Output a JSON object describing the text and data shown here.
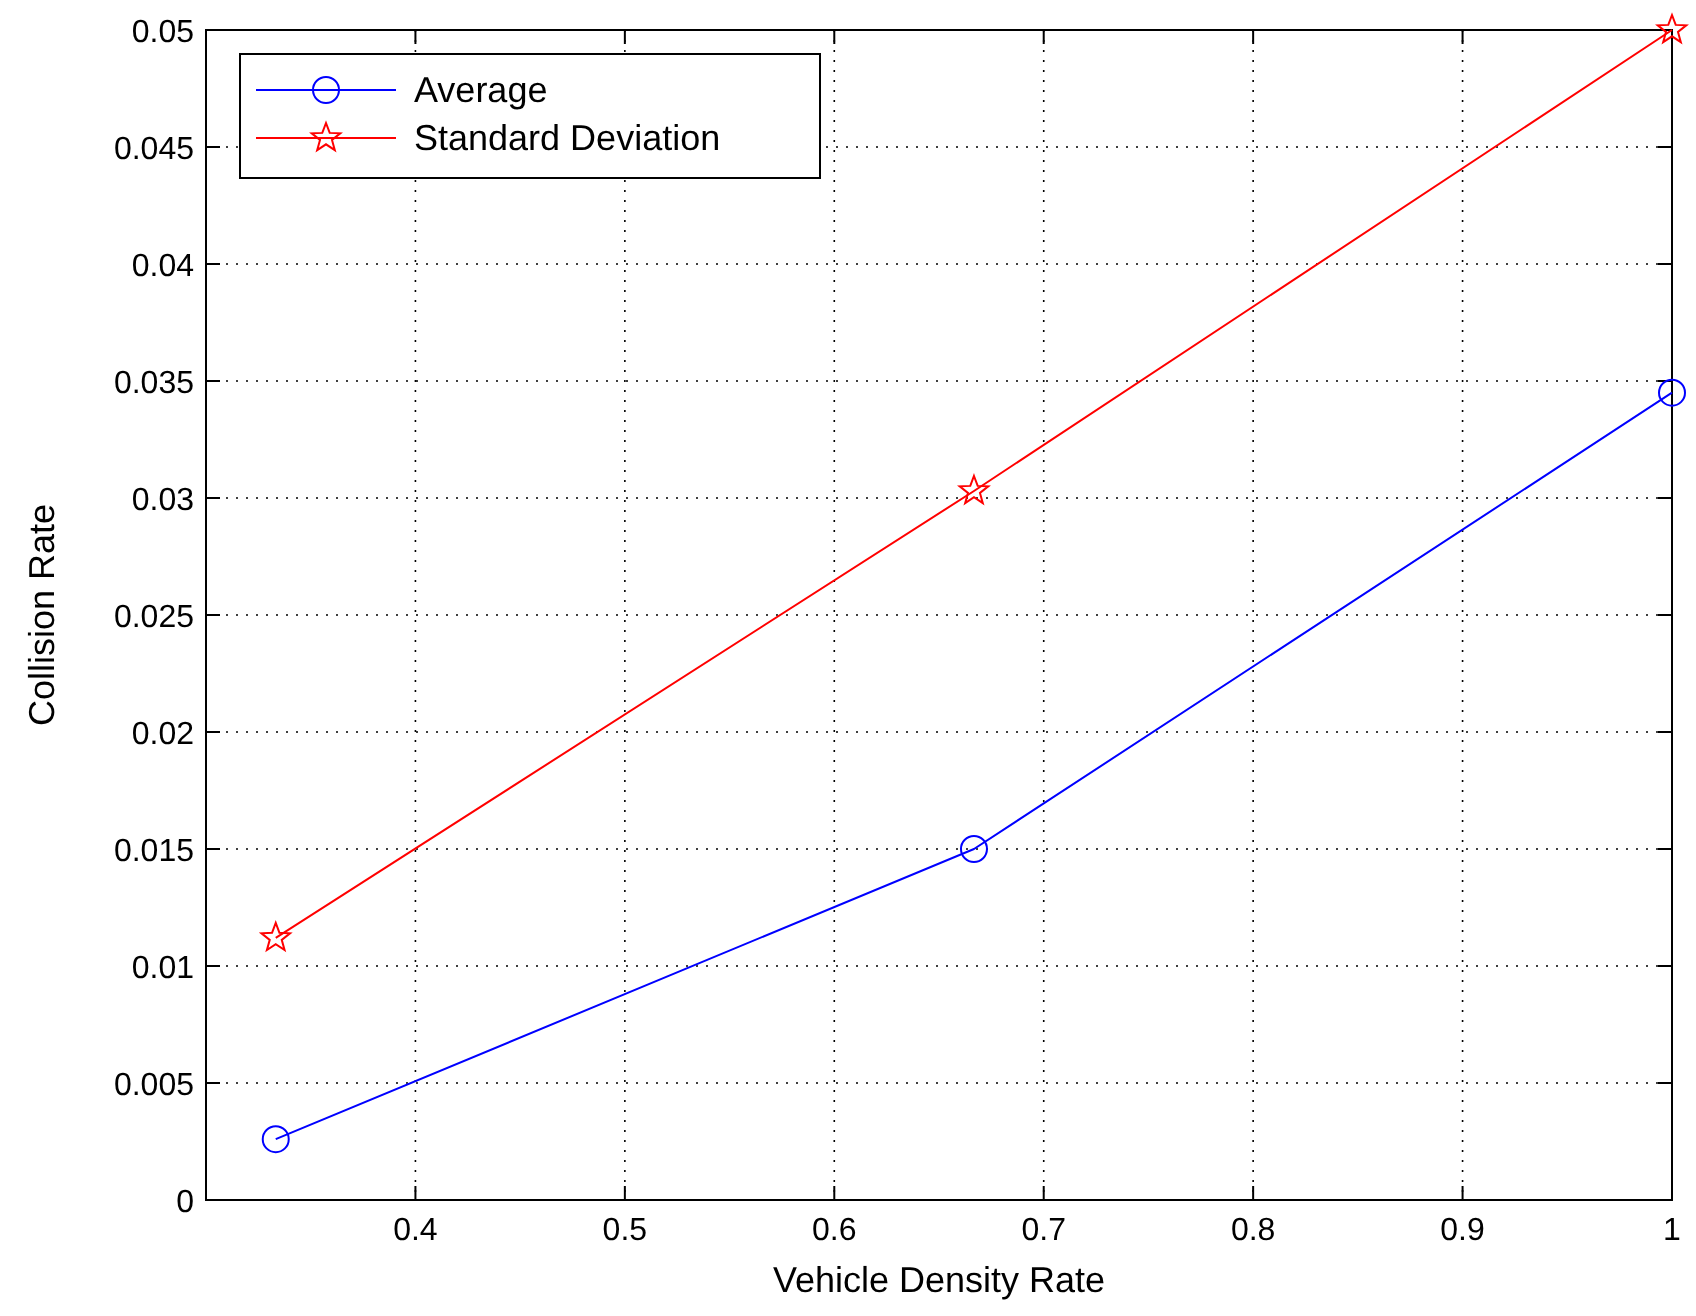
{
  "chart_data": {
    "type": "line",
    "xlabel": "Vehicle Density Rate",
    "ylabel": "Collision Rate",
    "x": [
      0.3333,
      0.6667,
      1
    ],
    "series": [
      {
        "name": "Average",
        "color": "#0000ff",
        "values": [
          0.0026,
          0.015,
          0.0345
        ],
        "marker": "circle"
      },
      {
        "name": "Standard Deviation",
        "color": "#ff0000",
        "values": [
          0.0112,
          0.0303,
          0.05
        ],
        "marker": "star"
      }
    ],
    "xlim": [
      0.3,
      1
    ],
    "xticks": [
      0.4,
      0.5,
      0.6,
      0.7,
      0.8,
      0.9,
      1
    ],
    "ylim": [
      0,
      0.05
    ],
    "yticks": [
      0,
      0.005,
      0.01,
      0.015,
      0.02,
      0.025,
      0.03,
      0.035,
      0.04,
      0.045,
      0.05
    ],
    "grid": true,
    "legend": "top left",
    "line_style": "solid"
  }
}
